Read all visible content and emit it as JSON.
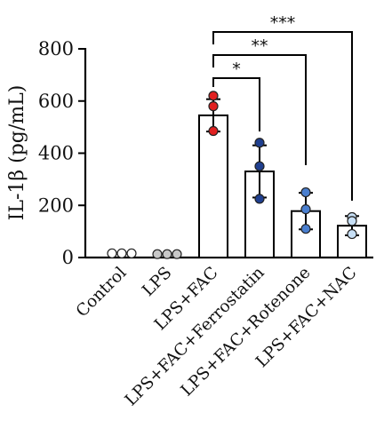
{
  "chart_data": {
    "type": "bar",
    "title": "",
    "xlabel": "",
    "ylabel": "IL-1β (pg/mL)",
    "ylim": [
      0,
      800
    ],
    "yticks": [
      0,
      200,
      400,
      600,
      800
    ],
    "categories": [
      "Control",
      "LPS",
      "LPS+FAC",
      "LPS+FAC+Ferrostatin",
      "LPS+FAC+Rotenone",
      "LPS+FAC+NAC"
    ],
    "values": [
      16,
      13,
      545,
      330,
      178,
      122
    ],
    "error_sd": [
      0,
      0,
      62,
      100,
      70,
      37
    ],
    "points": [
      [
        16,
        16,
        16
      ],
      [
        13,
        13,
        13
      ],
      [
        620,
        580,
        485
      ],
      [
        440,
        350,
        225
      ],
      [
        250,
        185,
        110
      ],
      [
        155,
        140,
        90
      ]
    ],
    "point_colors": [
      "#ffffff",
      "#c8c8c8",
      "#e02020",
      "#1f3f8f",
      "#4a7fcf",
      "#c8e0f6"
    ],
    "comparisons": [
      {
        "from": "LPS+FAC",
        "to": "LPS+FAC+Ferrostatin",
        "label": "*"
      },
      {
        "from": "LPS+FAC",
        "to": "LPS+FAC+Rotenone",
        "label": "**"
      },
      {
        "from": "LPS+FAC",
        "to": "LPS+FAC+NAC",
        "label": "***"
      }
    ],
    "grid": false
  }
}
